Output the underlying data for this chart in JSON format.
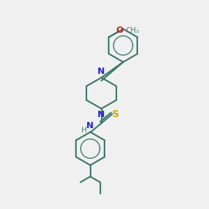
{
  "bg_color": "#f0f0f0",
  "bond_color": "#3a7a6a",
  "N_color": "#2222cc",
  "O_color": "#cc2020",
  "S_color": "#ccaa00",
  "line_width": 1.6,
  "font_size": 9,
  "fig_size": [
    3.0,
    3.0
  ],
  "dpi": 100,
  "xlim": [
    0,
    10
  ],
  "ylim": [
    0,
    10
  ]
}
